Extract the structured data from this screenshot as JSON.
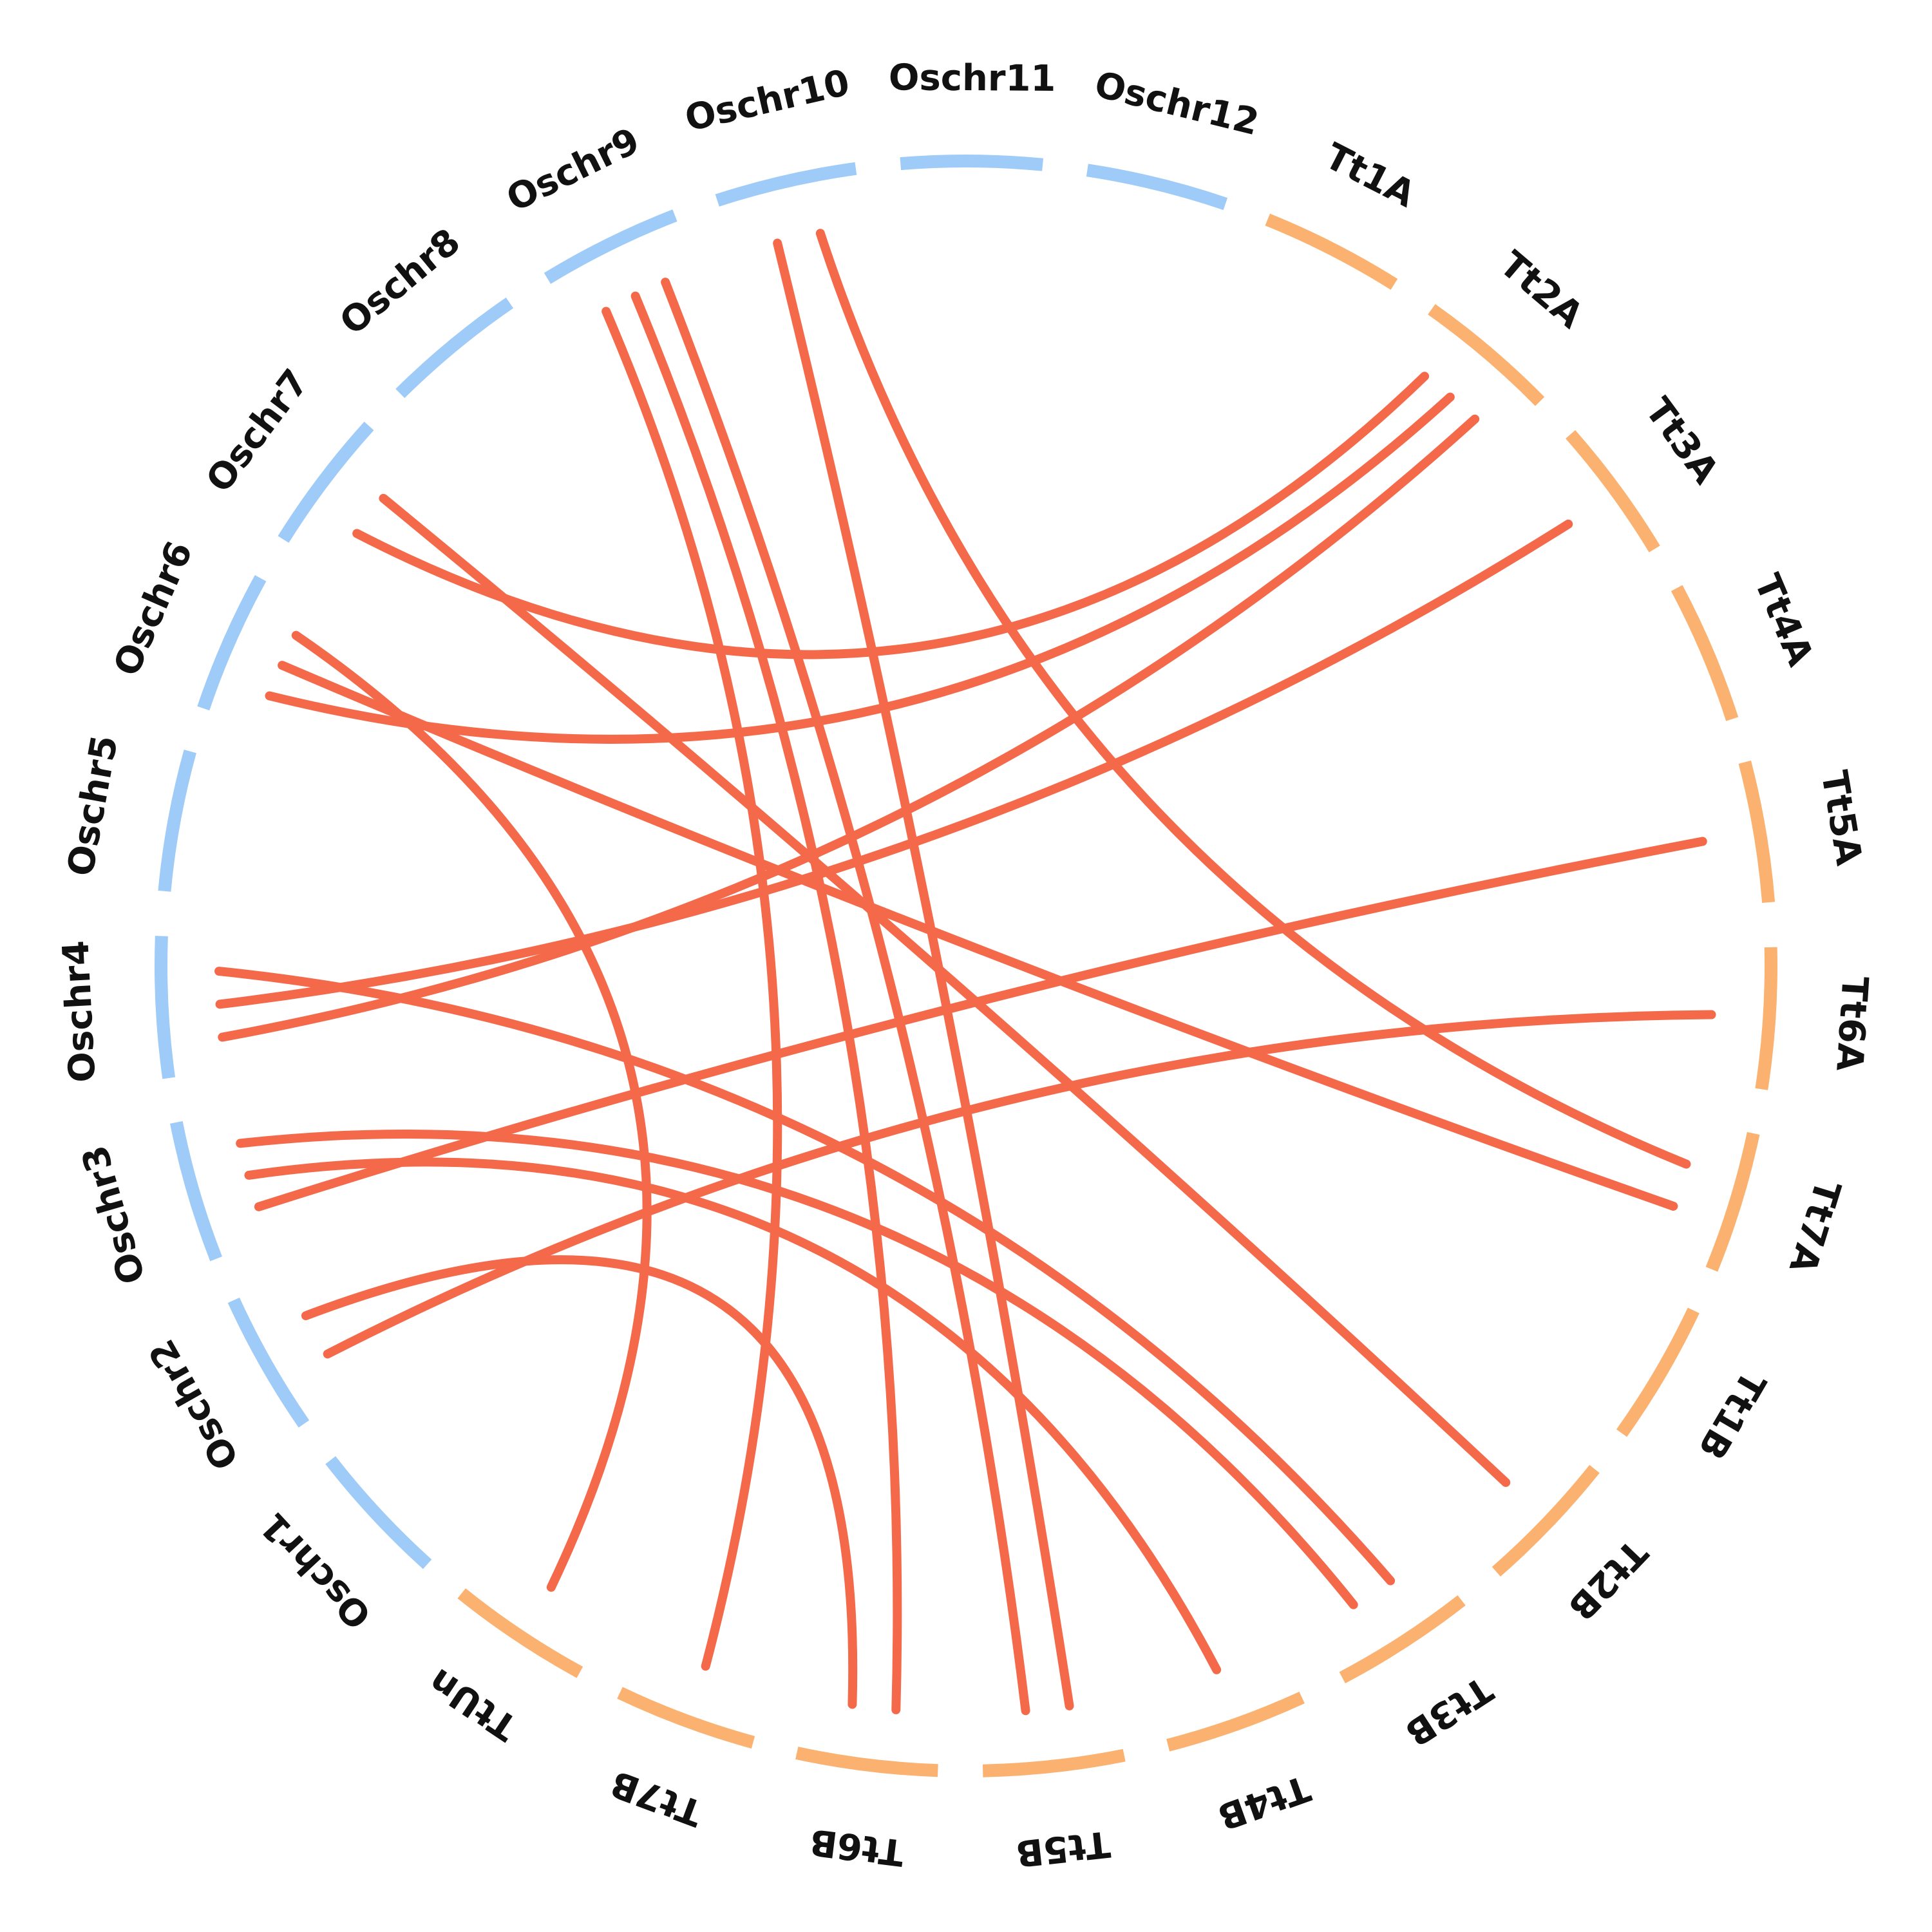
{
  "colors": {
    "rice": "#9ecbf8",
    "wheat": "#fbb16f",
    "link": "#f5694b",
    "label": "#111111"
  },
  "chromosomes": [
    {
      "label": "Oschr1",
      "species": "rice"
    },
    {
      "label": "Oschr2",
      "species": "rice"
    },
    {
      "label": "Oschr3",
      "species": "rice"
    },
    {
      "label": "Oschr4",
      "species": "rice"
    },
    {
      "label": "Oschr5",
      "species": "rice"
    },
    {
      "label": "Oschr6",
      "species": "rice"
    },
    {
      "label": "Oschr7",
      "species": "rice"
    },
    {
      "label": "Oschr8",
      "species": "rice"
    },
    {
      "label": "Oschr9",
      "species": "rice"
    },
    {
      "label": "Oschr10",
      "species": "rice"
    },
    {
      "label": "Oschr11",
      "species": "rice"
    },
    {
      "label": "Oschr12",
      "species": "rice"
    },
    {
      "label": "Tt1A",
      "species": "wheat"
    },
    {
      "label": "Tt2A",
      "species": "wheat"
    },
    {
      "label": "Tt3A",
      "species": "wheat"
    },
    {
      "label": "Tt4A",
      "species": "wheat"
    },
    {
      "label": "Tt5A",
      "species": "wheat"
    },
    {
      "label": "Tt6A",
      "species": "wheat"
    },
    {
      "label": "Tt7A",
      "species": "wheat"
    },
    {
      "label": "Tt1B",
      "species": "wheat"
    },
    {
      "label": "Tt2B",
      "species": "wheat"
    },
    {
      "label": "Tt3B",
      "species": "wheat"
    },
    {
      "label": "Tt4B",
      "species": "wheat"
    },
    {
      "label": "Tt5B",
      "species": "wheat"
    },
    {
      "label": "Tt6B",
      "species": "wheat"
    },
    {
      "label": "Tt7B",
      "species": "wheat"
    },
    {
      "label": "TtUn",
      "species": "wheat"
    }
  ],
  "links": [
    {
      "from": "Oschr10",
      "to": "Tt5B"
    },
    {
      "from": "Oschr9",
      "to": "Tt7B"
    },
    {
      "from": "Oschr9",
      "to": "Tt6B"
    },
    {
      "from": "Oschr9",
      "to": "Tt5B"
    },
    {
      "from": "Oschr10",
      "to": "Tt7A"
    },
    {
      "from": "Oschr7",
      "to": "Tt2A"
    },
    {
      "from": "Oschr7",
      "to": "Tt2B"
    },
    {
      "from": "Oschr6",
      "to": "Tt2A"
    },
    {
      "from": "Oschr6",
      "to": "Tt7A"
    },
    {
      "from": "Oschr6",
      "to": "TtUn"
    },
    {
      "from": "Oschr4",
      "to": "Tt2A"
    },
    {
      "from": "Oschr4",
      "to": "Tt3A"
    },
    {
      "from": "Oschr4",
      "to": "Tt3B"
    },
    {
      "from": "Oschr3",
      "to": "Tt5A"
    },
    {
      "from": "Oschr3",
      "to": "Tt4B"
    },
    {
      "from": "Oschr3",
      "to": "Tt3B"
    },
    {
      "from": "Oschr2",
      "to": "Tt6A"
    },
    {
      "from": "Oschr2",
      "to": "Tt6B"
    }
  ]
}
